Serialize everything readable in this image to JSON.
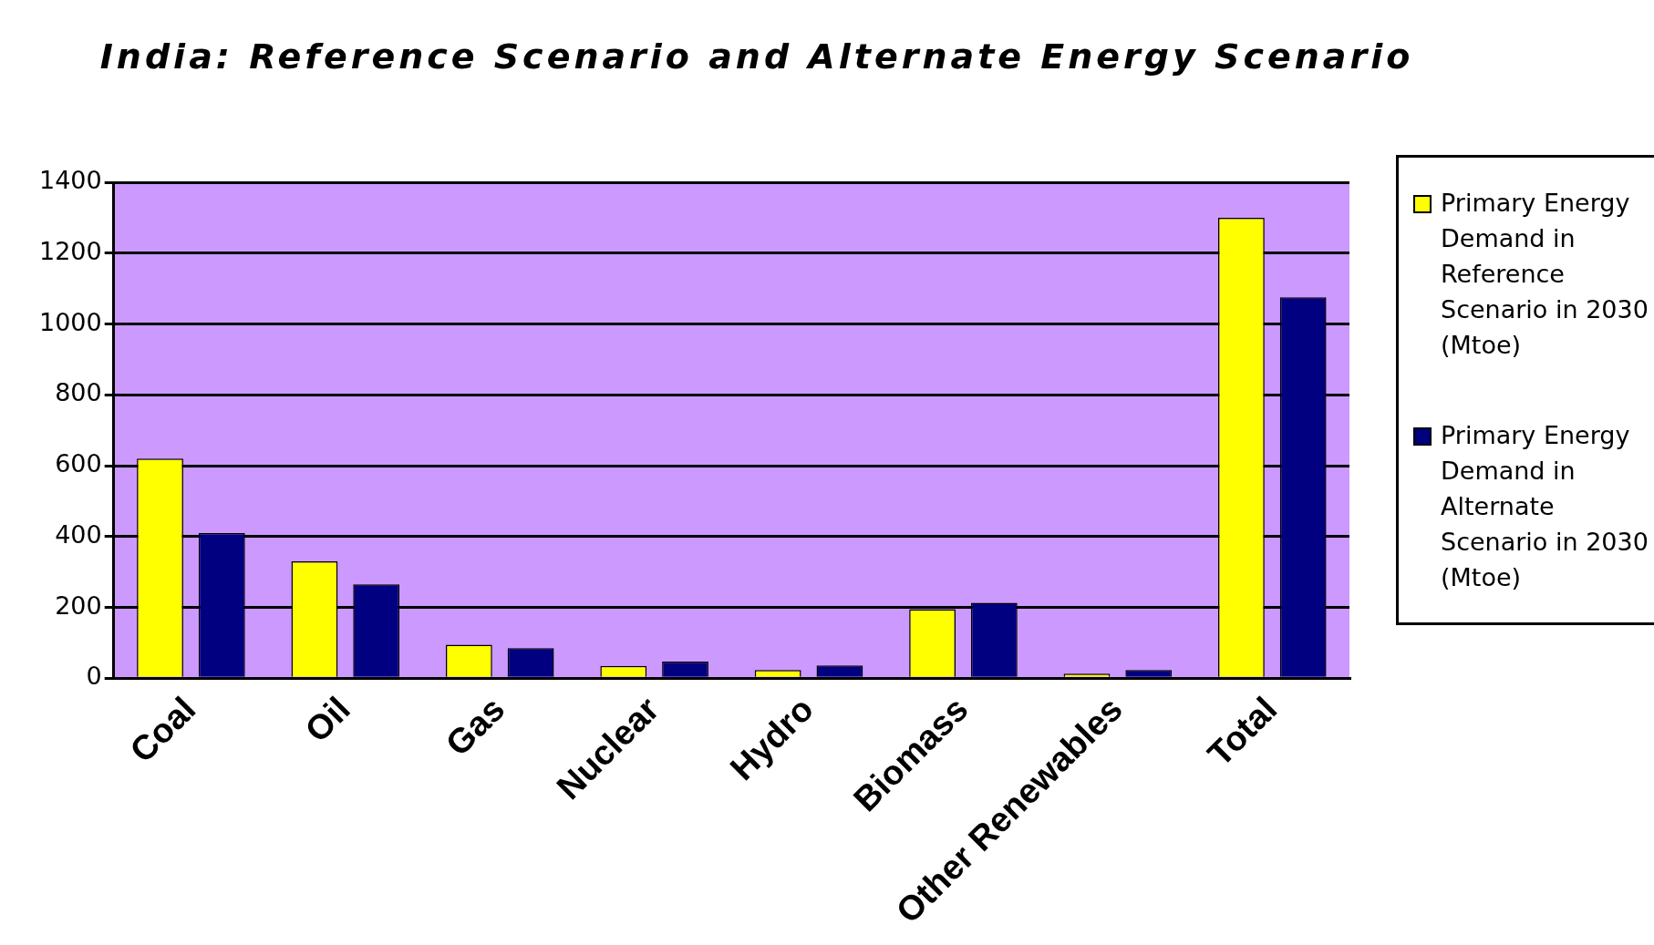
{
  "chart_data": {
    "type": "bar",
    "title": "India: Reference Scenario and Alternate Energy Scenario",
    "categories": [
      "Coal",
      "Oil",
      "Gas",
      "Nuclear",
      "Hydro",
      "Biomass",
      "Other Renewables",
      "Total"
    ],
    "series": [
      {
        "name": "Primary Energy Demand in Reference Scenario in 2030 (Mtoe)",
        "color": "#ffff00",
        "values": [
          620,
          330,
          95,
          35,
          23,
          195,
          13,
          1300
        ]
      },
      {
        "name": "Primary Energy Demand in Alternate Scenario in 2030 (Mtoe)",
        "color": "#000080",
        "values": [
          410,
          265,
          85,
          47,
          36,
          213,
          23,
          1075
        ]
      }
    ],
    "ylim": [
      0,
      1400
    ],
    "yticks": [
      0,
      200,
      400,
      600,
      800,
      1000,
      1200,
      1400
    ],
    "grid": "y",
    "legend": "right"
  }
}
